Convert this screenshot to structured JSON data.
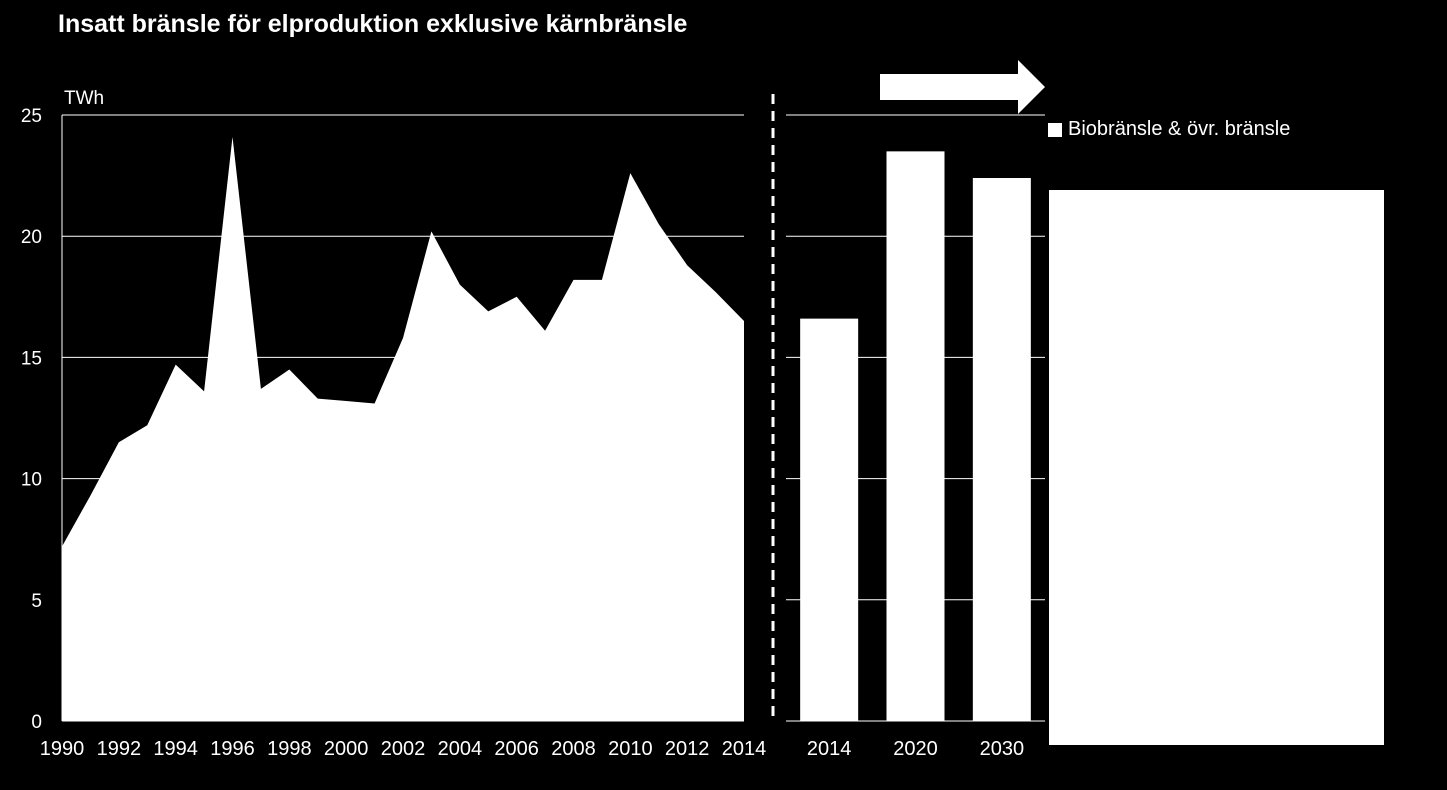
{
  "title": "Insatt bränsle för elproduktion exklusive kärnbränsle",
  "colors": {
    "background": "#000000",
    "foreground": "#ffffff"
  },
  "arrow_icon": "right-arrow-icon",
  "chart_data": [
    {
      "type": "area",
      "title": "",
      "ylabel": "TWh",
      "ylim": [
        0,
        25
      ],
      "yticks": [
        0,
        5,
        10,
        15,
        20,
        25
      ],
      "grid": true,
      "x": [
        1990,
        1991,
        1992,
        1993,
        1994,
        1995,
        1996,
        1997,
        1998,
        1999,
        2000,
        2001,
        2002,
        2003,
        2004,
        2005,
        2006,
        2007,
        2008,
        2009,
        2010,
        2011,
        2012,
        2013,
        2014
      ],
      "xticks": [
        "1990",
        "1992",
        "1994",
        "1996",
        "1998",
        "2000",
        "2002",
        "2004",
        "2006",
        "2008",
        "2010",
        "2012",
        "2014"
      ],
      "values": [
        7.2,
        9.3,
        11.5,
        12.2,
        14.7,
        13.6,
        24.1,
        13.7,
        14.5,
        13.3,
        13.2,
        13.1,
        15.8,
        20.2,
        18.0,
        16.9,
        17.5,
        16.1,
        18.2,
        18.2,
        22.6,
        20.5,
        18.8,
        17.7,
        16.5
      ]
    },
    {
      "type": "bar",
      "title": "",
      "categories": [
        "2014",
        "2020",
        "2030"
      ],
      "values": [
        16.6,
        23.5,
        22.4
      ],
      "ylim": [
        0,
        25
      ],
      "grid": true,
      "legend": {
        "position": "right",
        "entries": [
          "Biobränsle & övr. bränsle"
        ]
      }
    }
  ]
}
